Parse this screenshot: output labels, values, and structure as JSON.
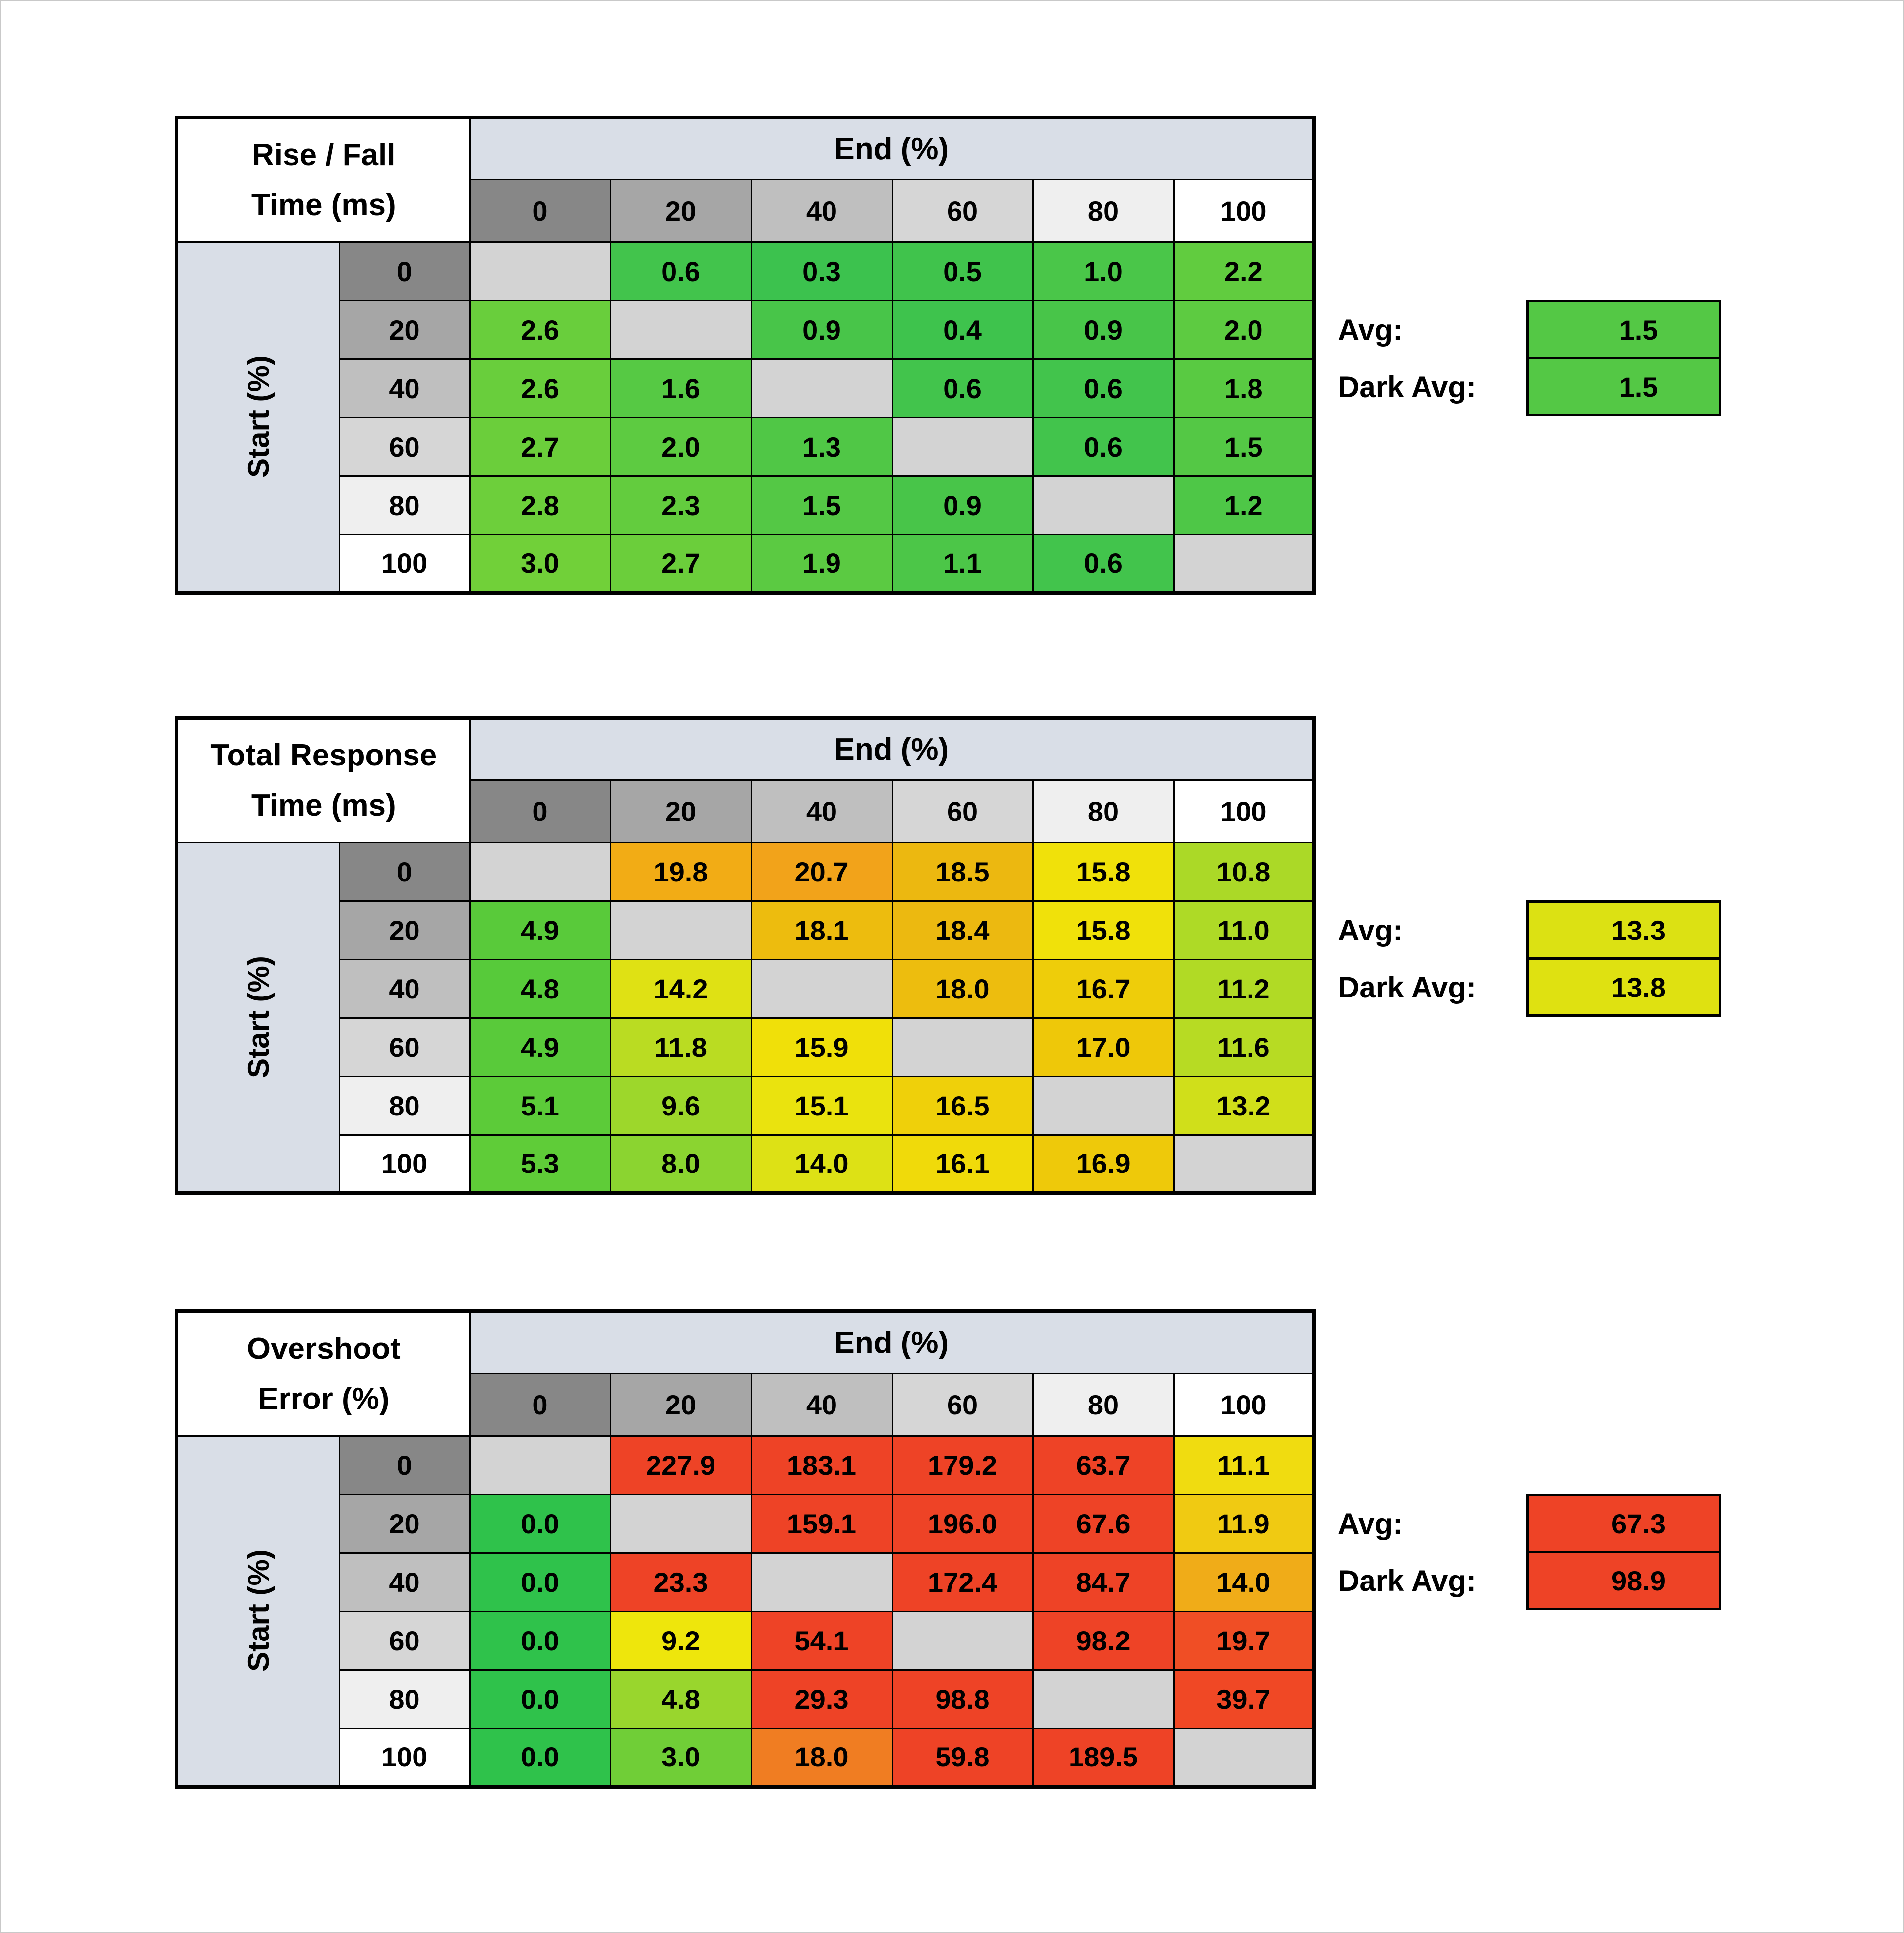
{
  "palette": {
    "page_background": "#FFFFFF",
    "band_blue_gray": "#D9DEE7",
    "diagonal_gray": "#D3D3D3",
    "grid_border": "#000000",
    "header_gray_ramp": [
      "#878787",
      "#A6A6A6",
      "#BFBFBF",
      "#D6D6D6",
      "#EFEFEF",
      "#FFFFFF"
    ]
  },
  "tables": [
    {
      "name": "rise-fall-time-table",
      "title_line1": "Rise / Fall",
      "title_line2": "Time (ms)",
      "end_header": "End (%)",
      "start_label": "Start (%)",
      "col_headers": [
        "0",
        "20",
        "40",
        "60",
        "80",
        "100"
      ],
      "row_headers": [
        "0",
        "20",
        "40",
        "60",
        "80",
        "100"
      ],
      "rows": [
        {
          "values": [
            null,
            "0.6",
            "0.3",
            "0.5",
            "1.0",
            "2.2"
          ],
          "colors": [
            null,
            "#42C44C",
            "#3CC24E",
            "#40C34C",
            "#4AC649",
            "#61CC3F"
          ]
        },
        {
          "values": [
            "2.6",
            null,
            "0.9",
            "0.4",
            "0.9",
            "2.0"
          ],
          "colors": [
            "#69CE3C",
            null,
            "#48C549",
            "#3EC34D",
            "#48C549",
            "#5DCB41"
          ]
        },
        {
          "values": [
            "2.6",
            "1.6",
            null,
            "0.6",
            "0.6",
            "1.8"
          ],
          "colors": [
            "#69CE3C",
            "#56C944",
            null,
            "#42C44C",
            "#42C44C",
            "#59CA42"
          ]
        },
        {
          "values": [
            "2.7",
            "2.0",
            "1.3",
            null,
            "0.6",
            "1.5"
          ],
          "colors": [
            "#6BCE3B",
            "#5DCB41",
            "#50C746",
            null,
            "#42C44C",
            "#54C845"
          ]
        },
        {
          "values": [
            "2.8",
            "2.3",
            "1.5",
            "0.9",
            null,
            "1.2"
          ],
          "colors": [
            "#6DCF3B",
            "#63CC3E",
            "#54C845",
            "#48C549",
            null,
            "#4EC747"
          ]
        },
        {
          "values": [
            "3.0",
            "2.7",
            "1.9",
            "1.1",
            "0.6",
            null
          ],
          "colors": [
            "#71D039",
            "#6BCE3B",
            "#5BCA42",
            "#4CC648",
            "#42C44C",
            null
          ]
        }
      ],
      "avg_label": "Avg:",
      "avg_value": "1.5",
      "avg_color": "#54C845",
      "dark_avg_label": "Dark Avg:",
      "dark_avg_value": "1.5",
      "dark_avg_color": "#54C845"
    },
    {
      "name": "total-response-time-table",
      "title_line1": "Total Response",
      "title_line2": "Time (ms)",
      "end_header": "End (%)",
      "start_label": "Start (%)",
      "col_headers": [
        "0",
        "20",
        "40",
        "60",
        "80",
        "100"
      ],
      "row_headers": [
        "0",
        "20",
        "40",
        "60",
        "80",
        "100"
      ],
      "rows": [
        {
          "values": [
            null,
            "19.8",
            "20.7",
            "18.5",
            "15.8",
            "10.8"
          ],
          "colors": [
            null,
            "#F2AC15",
            "#F2A31A",
            "#ECB810",
            "#F0E10A",
            "#ABD927"
          ]
        },
        {
          "values": [
            "4.9",
            null,
            "18.1",
            "18.4",
            "15.8",
            "11.0"
          ],
          "colors": [
            "#59CA3A",
            null,
            "#EDBC0E",
            "#ECB910",
            "#F0E10A",
            "#AEDA26"
          ]
        },
        {
          "values": [
            "4.8",
            "14.2",
            null,
            "18.0",
            "16.7",
            "11.2"
          ],
          "colors": [
            "#57CA3A",
            "#DFE114",
            null,
            "#EDBD0E",
            "#EECD0A",
            "#B1DA25"
          ]
        },
        {
          "values": [
            "4.9",
            "11.8",
            "15.9",
            null,
            "17.0",
            "11.6"
          ],
          "colors": [
            "#59CA3A",
            "#BADC22",
            "#F0E009",
            null,
            "#EEC809",
            "#B7DB23"
          ]
        },
        {
          "values": [
            "5.1",
            "9.6",
            "15.1",
            "16.5",
            null,
            "13.2"
          ],
          "colors": [
            "#5CCB39",
            "#9DD72B",
            "#EAE30E",
            "#EFD00A",
            null,
            "#D0DF1A"
          ]
        },
        {
          "values": [
            "5.3",
            "8.0",
            "14.0",
            "16.1",
            "16.9",
            null
          ],
          "colors": [
            "#5FCC38",
            "#8BD430",
            "#DDE115",
            "#F0DA0A",
            "#EEC90A",
            null
          ]
        }
      ],
      "avg_label": "Avg:",
      "avg_value": "13.3",
      "avg_color": "#DCE113",
      "dark_avg_label": "Dark Avg:",
      "dark_avg_value": "13.8",
      "dark_avg_color": "#DFE111"
    },
    {
      "name": "overshoot-error-table",
      "title_line1": "Overshoot",
      "title_line2": "Error (%)",
      "end_header": "End (%)",
      "start_label": "Start (%)",
      "col_headers": [
        "0",
        "20",
        "40",
        "60",
        "80",
        "100"
      ],
      "row_headers": [
        "0",
        "20",
        "40",
        "60",
        "80",
        "100"
      ],
      "rows": [
        {
          "values": [
            null,
            "227.9",
            "183.1",
            "179.2",
            "63.7",
            "11.1"
          ],
          "colors": [
            null,
            "#EE4326",
            "#EE4326",
            "#EE4326",
            "#EE4326",
            "#F0DC10"
          ]
        },
        {
          "values": [
            "0.0",
            null,
            "159.1",
            "196.0",
            "67.6",
            "11.9"
          ],
          "colors": [
            "#2FC24B",
            null,
            "#EE4326",
            "#EE4326",
            "#EE4326",
            "#F0CA12"
          ]
        },
        {
          "values": [
            "0.0",
            "23.3",
            null,
            "172.4",
            "84.7",
            "14.0"
          ],
          "colors": [
            "#2FC24B",
            "#EE4326",
            null,
            "#EE4326",
            "#EE4326",
            "#F0AC18"
          ]
        },
        {
          "values": [
            "0.0",
            "9.2",
            "54.1",
            null,
            "98.2",
            "19.7"
          ],
          "colors": [
            "#2FC24B",
            "#EEE60C",
            "#EE4326",
            null,
            "#EE4326",
            "#F04E25"
          ]
        },
        {
          "values": [
            "0.0",
            "4.8",
            "29.3",
            "98.8",
            null,
            "39.7"
          ],
          "colors": [
            "#2FC24B",
            "#99D62D",
            "#EE4326",
            "#EE4326",
            null,
            "#F04825"
          ]
        },
        {
          "values": [
            "0.0",
            "3.0",
            "18.0",
            "59.8",
            "189.5",
            null
          ],
          "colors": [
            "#2FC24B",
            "#70CE37",
            "#F07D22",
            "#EE4326",
            "#EE4326",
            null
          ]
        }
      ],
      "avg_label": "Avg:",
      "avg_value": "67.3",
      "avg_color": "#EE4326",
      "dark_avg_label": "Dark Avg:",
      "dark_avg_value": "98.9",
      "dark_avg_color": "#EE4326"
    }
  ],
  "chart_data": [
    {
      "type": "heatmap",
      "title": "Rise / Fall Time (ms)",
      "xlabel": "End (%)",
      "ylabel": "Start (%)",
      "x": [
        0,
        20,
        40,
        60,
        80,
        100
      ],
      "y": [
        0,
        20,
        40,
        60,
        80,
        100
      ],
      "values": [
        [
          null,
          0.6,
          0.3,
          0.5,
          1.0,
          2.2
        ],
        [
          2.6,
          null,
          0.9,
          0.4,
          0.9,
          2.0
        ],
        [
          2.6,
          1.6,
          null,
          0.6,
          0.6,
          1.8
        ],
        [
          2.7,
          2.0,
          1.3,
          null,
          0.6,
          1.5
        ],
        [
          2.8,
          2.3,
          1.5,
          0.9,
          null,
          1.2
        ],
        [
          3.0,
          2.7,
          1.9,
          1.1,
          0.6,
          null
        ]
      ],
      "avg": 1.5,
      "dark_avg": 1.5,
      "color_scale": "green (fast) to yellow-green (slow)"
    },
    {
      "type": "heatmap",
      "title": "Total Response Time (ms)",
      "xlabel": "End (%)",
      "ylabel": "Start (%)",
      "x": [
        0,
        20,
        40,
        60,
        80,
        100
      ],
      "y": [
        0,
        20,
        40,
        60,
        80,
        100
      ],
      "values": [
        [
          null,
          19.8,
          20.7,
          18.5,
          15.8,
          10.8
        ],
        [
          4.9,
          null,
          18.1,
          18.4,
          15.8,
          11.0
        ],
        [
          4.8,
          14.2,
          null,
          18.0,
          16.7,
          11.2
        ],
        [
          4.9,
          11.8,
          15.9,
          null,
          17.0,
          11.6
        ],
        [
          5.1,
          9.6,
          15.1,
          16.5,
          null,
          13.2
        ],
        [
          5.3,
          8.0,
          14.0,
          16.1,
          16.9,
          null
        ]
      ],
      "avg": 13.3,
      "dark_avg": 13.8,
      "color_scale": "green (fast) through yellow to orange (slow)"
    },
    {
      "type": "heatmap",
      "title": "Overshoot Error (%)",
      "xlabel": "End (%)",
      "ylabel": "Start (%)",
      "x": [
        0,
        20,
        40,
        60,
        80,
        100
      ],
      "y": [
        0,
        20,
        40,
        60,
        80,
        100
      ],
      "values": [
        [
          null,
          227.9,
          183.1,
          179.2,
          63.7,
          11.1
        ],
        [
          0.0,
          null,
          159.1,
          196.0,
          67.6,
          11.9
        ],
        [
          0.0,
          23.3,
          null,
          172.4,
          84.7,
          14.0
        ],
        [
          0.0,
          9.2,
          54.1,
          null,
          98.2,
          19.7
        ],
        [
          0.0,
          4.8,
          29.3,
          98.8,
          null,
          39.7
        ],
        [
          0.0,
          3.0,
          18.0,
          59.8,
          189.5,
          null
        ]
      ],
      "avg": 67.3,
      "dark_avg": 98.9,
      "color_scale": "green (no overshoot) through yellow/orange to red (high overshoot)"
    }
  ]
}
